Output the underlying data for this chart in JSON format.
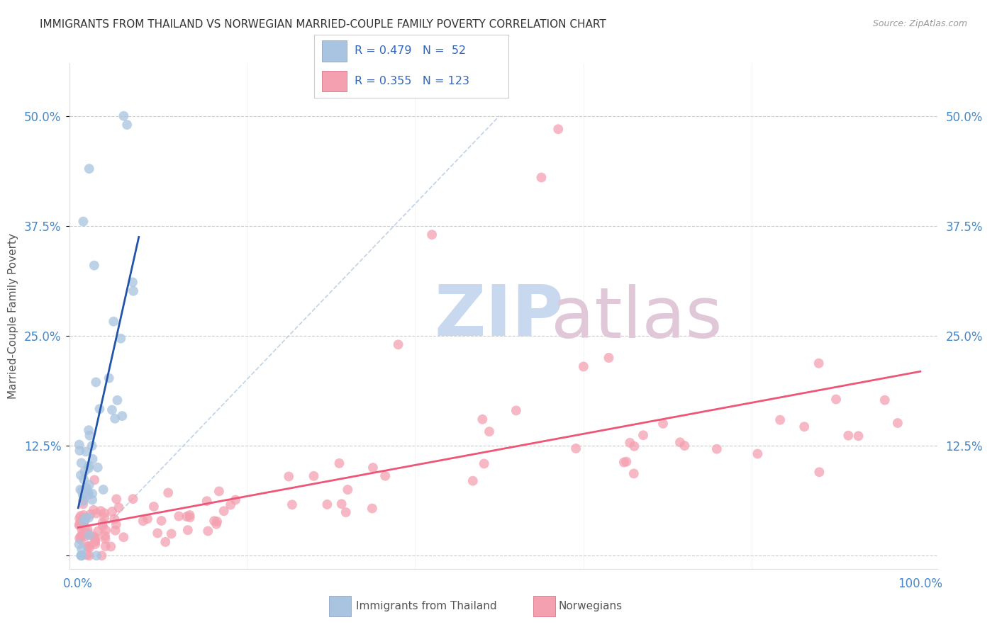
{
  "title": "IMMIGRANTS FROM THAILAND VS NORWEGIAN MARRIED-COUPLE FAMILY POVERTY CORRELATION CHART",
  "source": "Source: ZipAtlas.com",
  "ylabel": "Married-Couple Family Poverty",
  "color_blue": "#A8C4E0",
  "color_pink": "#F4A0B0",
  "color_blue_line": "#2255AA",
  "color_pink_line": "#EE5577",
  "color_dashed": "#B0C8E0",
  "legend_text1": "R = 0.479   N =  52",
  "legend_text2": "R = 0.355   N = 123",
  "legend_color_text": "#3366BB",
  "watermark_zip_color": "#C8D8EE",
  "watermark_atlas_color": "#E0C8D8",
  "thai_seed": 1234,
  "norway_seed": 5678
}
